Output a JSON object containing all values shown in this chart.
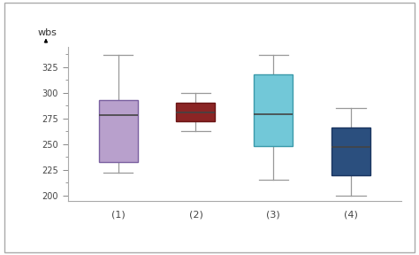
{
  "boxes": [
    {
      "label": "(1)",
      "whislo": 222,
      "q1": 233,
      "med": 278,
      "q3": 293,
      "whishi": 337,
      "color": "#b8a0cc",
      "edge_color": "#7a60a0"
    },
    {
      "label": "(2)",
      "whislo": 263,
      "q1": 272,
      "med": 281,
      "q3": 290,
      "whishi": 300,
      "color": "#8b2525",
      "edge_color": "#6a1515"
    },
    {
      "label": "(3)",
      "whislo": 215,
      "q1": 248,
      "med": 279,
      "q3": 318,
      "whishi": 337,
      "color": "#72c8d8",
      "edge_color": "#3a9aaa"
    },
    {
      "label": "(4)",
      "whislo": 200,
      "q1": 220,
      "med": 247,
      "q3": 266,
      "whishi": 285,
      "color": "#2b4f7e",
      "edge_color": "#1a3560"
    }
  ],
  "ylabel": "wbs",
  "ylim": [
    195,
    345
  ],
  "yticks_major": [
    200,
    225,
    250,
    275,
    300,
    325
  ],
  "background_color": "#ffffff",
  "box_width": 0.5,
  "whisker_color": "#999999",
  "median_color": "#444444",
  "spine_color": "#aaaaaa",
  "tick_color": "#888888",
  "label_color": "#444444"
}
